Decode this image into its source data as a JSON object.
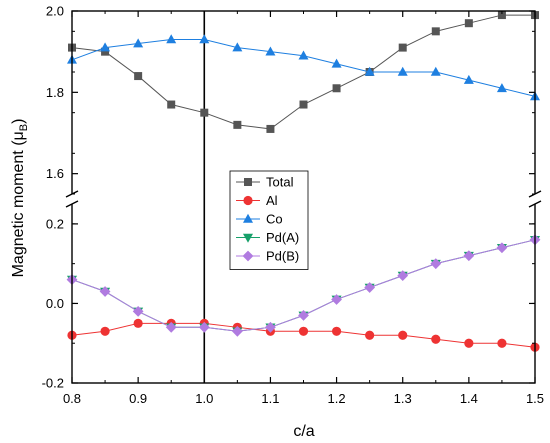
{
  "chart_data": {
    "type": "line",
    "xlabel": "c/a",
    "ylabel_main": "Magnetic moment (μ",
    "ylabel_sub": "B",
    "ylabel_close": ")",
    "xlim": [
      0.8,
      1.5
    ],
    "x_ticks": [
      "0.8",
      "0.9",
      "1.0",
      "1.1",
      "1.2",
      "1.3",
      "1.4",
      "1.5"
    ],
    "y_axis_break": true,
    "upper_panel": {
      "ylim": [
        1.55,
        2.0
      ],
      "y_ticks": [
        "1.6",
        "1.8",
        "2.0"
      ]
    },
    "lower_panel": {
      "ylim": [
        -0.2,
        0.25
      ],
      "y_ticks": [
        "-0.2",
        "0.0",
        "0.2"
      ]
    },
    "reference_line_x": 1.0,
    "x": [
      0.8,
      0.85,
      0.9,
      0.95,
      1.0,
      1.05,
      1.1,
      1.15,
      1.2,
      1.25,
      1.3,
      1.35,
      1.4,
      1.45,
      1.5
    ],
    "series": [
      {
        "name": "Total",
        "panel": "upper",
        "color": "#555555",
        "marker": "square",
        "values": [
          1.91,
          1.9,
          1.84,
          1.77,
          1.75,
          1.72,
          1.71,
          1.77,
          1.81,
          1.85,
          1.91,
          1.95,
          1.97,
          1.99,
          1.99
        ]
      },
      {
        "name": "Al",
        "panel": "lower",
        "color": "#ee3333",
        "marker": "circle",
        "values": [
          -0.08,
          -0.07,
          -0.05,
          -0.05,
          -0.05,
          -0.06,
          -0.07,
          -0.07,
          -0.07,
          -0.08,
          -0.08,
          -0.09,
          -0.1,
          -0.1,
          -0.11
        ]
      },
      {
        "name": "Co",
        "panel": "upper",
        "color": "#1e7fe0",
        "marker": "triangle-up",
        "values": [
          1.88,
          1.91,
          1.92,
          1.93,
          1.93,
          1.91,
          1.9,
          1.89,
          1.87,
          1.85,
          1.85,
          1.85,
          1.83,
          1.81,
          1.79
        ]
      },
      {
        "name": "Pd(A)",
        "panel": "lower",
        "color": "#17a06a",
        "marker": "triangle-down",
        "values": [
          0.06,
          0.03,
          -0.02,
          -0.06,
          -0.06,
          -0.07,
          -0.06,
          -0.03,
          0.01,
          0.04,
          0.07,
          0.1,
          0.12,
          0.14,
          0.16
        ]
      },
      {
        "name": "Pd(B)",
        "panel": "lower",
        "color": "#b07be0",
        "marker": "diamond",
        "values": [
          0.06,
          0.03,
          -0.02,
          -0.06,
          -0.06,
          -0.07,
          -0.06,
          -0.03,
          0.01,
          0.04,
          0.07,
          0.1,
          0.12,
          0.14,
          0.16
        ]
      }
    ]
  }
}
